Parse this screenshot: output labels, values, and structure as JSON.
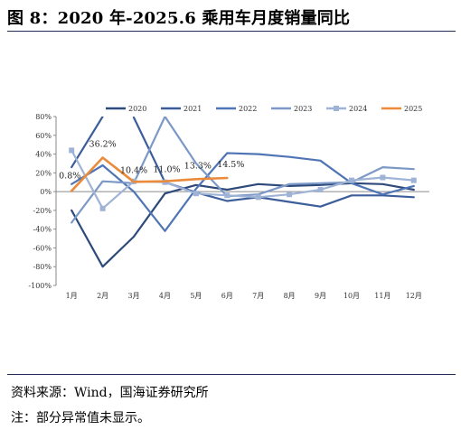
{
  "title": "图 8：2020 年-2025.6 乘用车月度销量同比",
  "source": "资料来源：Wind，国海证券研究所",
  "note": "注：部分异常值未显示。",
  "chart_data": {
    "type": "line",
    "categories": [
      "1月",
      "2月",
      "3月",
      "4月",
      "5月",
      "6月",
      "7月",
      "8月",
      "9月",
      "10月",
      "11月",
      "12月"
    ],
    "yticks": [
      "80%",
      "60%",
      "40%",
      "20%",
      "0%",
      "-20%",
      "-40%",
      "-60%",
      "-80%",
      "-100%"
    ],
    "ylim": [
      -100,
      80
    ],
    "legend_position": "top",
    "series": [
      {
        "name": "2020",
        "color": "#2e4a7a",
        "values": [
          -20,
          -80,
          -48,
          -2,
          7,
          2,
          8,
          6,
          7,
          9,
          8,
          2
        ]
      },
      {
        "name": "2021",
        "color": "#3b5d9a",
        "values": [
          26,
          80,
          null,
          null,
          null,
          null,
          null,
          null,
          null,
          null,
          null,
          null
        ]
      },
      {
        "name": "2021",
        "color": "#3b5d9a",
        "values": [
          null,
          null,
          79,
          10,
          -1,
          -10,
          -6,
          -11,
          -16,
          -4,
          -4,
          -6
        ]
      },
      {
        "name": "2022",
        "color": "#4f75b5",
        "values": [
          8,
          28,
          0,
          -42,
          3,
          41,
          40,
          37,
          33,
          9,
          -3,
          6
        ]
      },
      {
        "name": "2023",
        "color": "#7b98c7",
        "values": [
          -33,
          11,
          9,
          80,
          30,
          -5,
          -3,
          8,
          9,
          10,
          26,
          24
        ]
      },
      {
        "name": "2024",
        "color": "#9fb3d6",
        "values": [
          44,
          -18,
          11,
          10,
          -2,
          -4,
          -6,
          -3,
          2,
          12,
          15,
          12
        ]
      },
      {
        "name": "2025",
        "color": "#ea8a3a",
        "values": [
          0.8,
          36.2,
          10.4,
          11.0,
          13.3,
          14.5,
          null,
          null,
          null,
          null,
          null,
          null
        ]
      }
    ],
    "legend": [
      "2020",
      "2021",
      "2022",
      "2023",
      "2024",
      "2025"
    ],
    "data_labels": [
      "0.8%",
      "36.2%",
      "10.4%",
      "11.0%",
      "13.3%",
      "14.5%"
    ]
  }
}
